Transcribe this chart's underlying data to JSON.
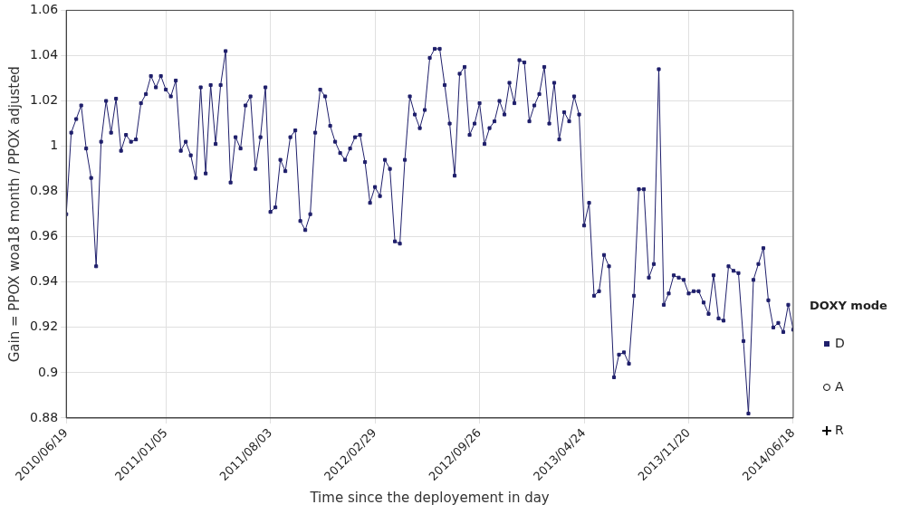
{
  "chart_data": {
    "type": "line",
    "xlabel": "Time since the deployement in day",
    "ylabel": "Gain = PPOX woa18 month / PPOX adjusted",
    "legend_title": "DOXY mode",
    "legend": "right",
    "grid": true,
    "line_style": "solid",
    "x": [
      "2010-06-19",
      "2010-06-29",
      "2010-07-09",
      "2010-07-19",
      "2010-07-29",
      "2010-08-08",
      "2010-08-18",
      "2010-08-28",
      "2010-09-07",
      "2010-09-17",
      "2010-09-27",
      "2010-10-07",
      "2010-10-17",
      "2010-10-27",
      "2010-11-06",
      "2010-11-16",
      "2010-11-26",
      "2010-12-06",
      "2010-12-16",
      "2010-12-26",
      "2011-01-05",
      "2011-01-15",
      "2011-01-25",
      "2011-02-04",
      "2011-02-14",
      "2011-02-24",
      "2011-03-06",
      "2011-03-16",
      "2011-03-26",
      "2011-04-05",
      "2011-04-15",
      "2011-04-25",
      "2011-05-05",
      "2011-05-15",
      "2011-05-25",
      "2011-06-04",
      "2011-06-14",
      "2011-06-24",
      "2011-07-04",
      "2011-07-14",
      "2011-07-24",
      "2011-08-03",
      "2011-08-13",
      "2011-08-23",
      "2011-09-02",
      "2011-09-12",
      "2011-09-22",
      "2011-10-02",
      "2011-10-12",
      "2011-10-22",
      "2011-11-01",
      "2011-11-11",
      "2011-11-21",
      "2011-12-01",
      "2011-12-11",
      "2011-12-21",
      "2011-12-31",
      "2012-01-10",
      "2012-01-20",
      "2012-01-30",
      "2012-02-09",
      "2012-02-19",
      "2012-02-29",
      "2012-03-10",
      "2012-03-20",
      "2012-03-30",
      "2012-04-09",
      "2012-04-19",
      "2012-04-29",
      "2012-05-09",
      "2012-05-19",
      "2012-05-29",
      "2012-06-08",
      "2012-06-18",
      "2012-06-28",
      "2012-07-08",
      "2012-07-18",
      "2012-07-28",
      "2012-08-07",
      "2012-08-17",
      "2012-08-27",
      "2012-09-06",
      "2012-09-16",
      "2012-09-26",
      "2012-10-06",
      "2012-10-16",
      "2012-10-26",
      "2012-11-05",
      "2012-11-15",
      "2012-11-25",
      "2012-12-05",
      "2012-12-15",
      "2012-12-25",
      "2013-01-04",
      "2013-01-14",
      "2013-01-24",
      "2013-02-03",
      "2013-02-13",
      "2013-02-23",
      "2013-03-05",
      "2013-03-15",
      "2013-03-25",
      "2013-04-04",
      "2013-04-14",
      "2013-04-24",
      "2013-05-04",
      "2013-05-14",
      "2013-05-24",
      "2013-06-03",
      "2013-06-13",
      "2013-06-23",
      "2013-07-03",
      "2013-07-13",
      "2013-07-23",
      "2013-08-02",
      "2013-08-12",
      "2013-08-22",
      "2013-09-01",
      "2013-09-11",
      "2013-09-21",
      "2013-10-01",
      "2013-10-11",
      "2013-10-21",
      "2013-10-31",
      "2013-11-10",
      "2013-11-20",
      "2013-11-30",
      "2013-12-10",
      "2013-12-20",
      "2013-12-30",
      "2014-01-09",
      "2014-01-19",
      "2014-01-29",
      "2014-02-08",
      "2014-02-18",
      "2014-02-28",
      "2014-03-10",
      "2014-03-20",
      "2014-03-30",
      "2014-04-09",
      "2014-04-19",
      "2014-04-29",
      "2014-05-09",
      "2014-05-19",
      "2014-05-29",
      "2014-06-08",
      "2014-06-18"
    ],
    "xlim": [
      "2010-06-19",
      "2014-06-18"
    ],
    "xticks": [
      {
        "value": "2010-06-19",
        "label": "2010/06/19"
      },
      {
        "value": "2011-01-05",
        "label": "2011/01/05"
      },
      {
        "value": "2011-08-03",
        "label": "2011/08/03"
      },
      {
        "value": "2012-02-29",
        "label": "2012/02/29"
      },
      {
        "value": "2012-09-26",
        "label": "2012/09/26"
      },
      {
        "value": "2013-04-24",
        "label": "2013/04/24"
      },
      {
        "value": "2013-11-20",
        "label": "2013/11/20"
      },
      {
        "value": "2014-06-18",
        "label": "2014/06/18"
      }
    ],
    "ylim": [
      0.88,
      1.06
    ],
    "yticks": [
      0.88,
      0.9,
      0.92,
      0.94,
      0.96,
      0.98,
      1,
      1.02,
      1.04,
      1.06
    ],
    "series": [
      {
        "name": "D",
        "color": "#1f1f6b",
        "marker": "square",
        "values": [
          0.97,
          1.006,
          1.012,
          1.018,
          0.999,
          0.986,
          0.947,
          1.002,
          1.02,
          1.006,
          1.021,
          0.998,
          1.005,
          1.002,
          1.003,
          1.019,
          1.023,
          1.031,
          1.026,
          1.031,
          1.025,
          1.022,
          1.029,
          0.998,
          1.002,
          0.996,
          0.986,
          1.026,
          0.988,
          1.027,
          1.001,
          1.027,
          1.042,
          0.984,
          1.004,
          0.999,
          1.018,
          1.022,
          0.99,
          1.004,
          1.026,
          0.971,
          0.973,
          0.994,
          0.989,
          1.004,
          1.007,
          0.967,
          0.963,
          0.97,
          1.006,
          1.025,
          1.022,
          1.009,
          1.002,
          0.997,
          0.994,
          0.999,
          1.004,
          1.005,
          0.993,
          0.975,
          0.982,
          0.978,
          0.994,
          0.99,
          0.958,
          0.957,
          0.994,
          1.022,
          1.014,
          1.008,
          1.016,
          1.039,
          1.043,
          1.043,
          1.027,
          1.01,
          0.987,
          1.032,
          1.035,
          1.005,
          1.01,
          1.019,
          1.001,
          1.008,
          1.011,
          1.02,
          1.014,
          1.028,
          1.019,
          1.038,
          1.037,
          1.011,
          1.018,
          1.023,
          1.035,
          1.01,
          1.028,
          1.003,
          1.015,
          1.011,
          1.022,
          1.014,
          0.965,
          0.975,
          0.934,
          0.936,
          0.952,
          0.947,
          0.898,
          0.908,
          0.909,
          0.904,
          0.934,
          0.981,
          0.981,
          0.942,
          0.948,
          1.034,
          0.93,
          0.935,
          0.943,
          0.942,
          0.941,
          0.935,
          0.936,
          0.936,
          0.931,
          0.926,
          0.943,
          0.924,
          0.923,
          0.947,
          0.945,
          0.944,
          0.914,
          0.882,
          0.941,
          0.948,
          0.955,
          0.932,
          0.92,
          0.922,
          0.918,
          0.93,
          0.919
        ]
      },
      {
        "name": "A",
        "color": "#000000",
        "marker": "circle",
        "values": [
          null,
          null,
          null,
          null,
          null,
          null,
          null,
          null,
          null,
          null,
          null,
          null,
          null,
          null,
          null,
          null,
          null,
          null,
          null,
          null,
          null,
          null,
          null,
          null,
          null,
          null,
          null,
          null,
          null,
          null,
          null,
          null,
          null,
          null,
          null,
          null,
          null,
          null,
          null,
          null,
          null,
          null,
          null,
          null,
          null,
          null,
          null,
          null,
          null,
          null,
          null,
          null,
          null,
          null,
          null,
          null,
          null,
          null,
          null,
          null,
          null,
          null,
          null,
          null,
          null,
          null,
          null,
          null,
          null,
          null,
          null,
          null,
          null,
          null,
          null,
          null,
          null,
          null,
          null,
          null,
          null,
          null,
          null,
          null,
          null,
          null,
          null,
          null,
          null,
          null,
          null,
          null,
          null,
          null,
          null,
          null,
          null,
          null,
          null,
          null,
          null,
          null,
          null,
          null,
          null,
          null,
          null,
          null,
          null,
          null,
          null,
          null,
          null,
          null,
          null,
          null,
          null,
          null,
          null,
          null,
          null,
          null,
          null,
          null,
          null,
          null,
          null,
          null,
          null,
          null,
          null,
          null,
          null,
          null,
          null,
          null,
          null,
          null,
          null,
          null,
          null,
          null,
          null,
          null,
          null,
          null,
          null
        ]
      },
      {
        "name": "R",
        "color": "#000000",
        "marker": "cross",
        "values": [
          null,
          null,
          null,
          null,
          null,
          null,
          null,
          null,
          null,
          null,
          null,
          null,
          null,
          null,
          null,
          null,
          null,
          null,
          null,
          null,
          null,
          null,
          null,
          null,
          null,
          null,
          null,
          null,
          null,
          null,
          null,
          null,
          null,
          null,
          null,
          null,
          null,
          null,
          null,
          null,
          null,
          null,
          null,
          null,
          null,
          null,
          null,
          null,
          null,
          null,
          null,
          null,
          null,
          null,
          null,
          null,
          null,
          null,
          null,
          null,
          null,
          null,
          null,
          null,
          null,
          null,
          null,
          null,
          null,
          null,
          null,
          null,
          null,
          null,
          null,
          null,
          null,
          null,
          null,
          null,
          null,
          null,
          null,
          null,
          null,
          null,
          null,
          null,
          null,
          null,
          null,
          null,
          null,
          null,
          null,
          null,
          null,
          null,
          null,
          null,
          null,
          null,
          null,
          null,
          null,
          null,
          null,
          null,
          null,
          null,
          null,
          null,
          null,
          null,
          null,
          null,
          null,
          null,
          null,
          null,
          null,
          null,
          null,
          null,
          null,
          null,
          null,
          null,
          null,
          null,
          null,
          null,
          null,
          null,
          null,
          null,
          null,
          null,
          null,
          null,
          null,
          null,
          null,
          null,
          null,
          null,
          null
        ]
      }
    ]
  }
}
